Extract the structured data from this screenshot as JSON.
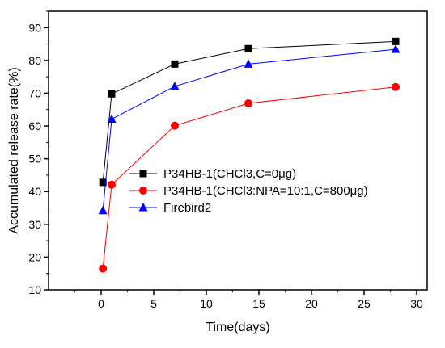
{
  "chart_data": {
    "type": "line",
    "xlabel": "Time(days)",
    "ylabel": "Accumulated release rate(%)",
    "xlim": [
      -5,
      31
    ],
    "ylim": [
      10,
      95
    ],
    "xticks": [
      0,
      5,
      10,
      15,
      20,
      25,
      30
    ],
    "yticks": [
      10,
      20,
      30,
      40,
      50,
      60,
      70,
      80,
      90
    ],
    "grid": false,
    "legend_position": "center-right",
    "series": [
      {
        "name": "P34HB-1(CHCl3,C=0μg)",
        "color": "#000000",
        "marker": "square",
        "x": [
          0.167,
          1,
          7,
          14,
          28
        ],
        "y": [
          42.8,
          69.8,
          78.9,
          83.6,
          85.8
        ]
      },
      {
        "name": "P34HB-1(CHCl3:NPA=10:1,C=800μg)",
        "color": "#ff0000",
        "marker": "circle",
        "x": [
          0.167,
          1,
          7,
          14,
          28
        ],
        "y": [
          16.5,
          42.1,
          60.1,
          66.9,
          71.9
        ]
      },
      {
        "name": "Firebird2",
        "color": "#0000ff",
        "marker": "triangle",
        "x": [
          0.167,
          1,
          7,
          14,
          28
        ],
        "y": [
          34.2,
          62.1,
          72.1,
          78.9,
          83.4
        ]
      }
    ]
  }
}
